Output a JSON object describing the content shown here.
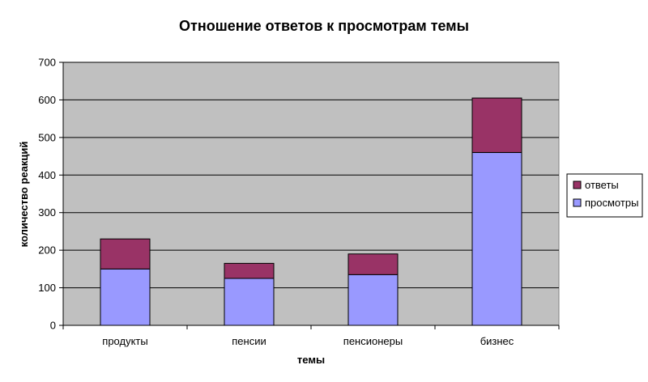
{
  "colors": {
    "plot_bg": "#c0c0c0",
    "otvety": "#993366",
    "prosmotry": "#9999ff",
    "gridline": "#000000",
    "legend_border": "#000000"
  },
  "chart_data": {
    "type": "bar",
    "stacked": true,
    "title": "Отношение ответов к просмотрам темы",
    "xlabel": "темы",
    "ylabel": "количество реакций",
    "categories": [
      "продукты",
      "пенсии",
      "пенсионеры",
      "бизнес"
    ],
    "series": [
      {
        "name": "просмотры",
        "values": [
          150,
          125,
          135,
          460
        ]
      },
      {
        "name": "ответы",
        "values": [
          80,
          40,
          55,
          145
        ]
      }
    ],
    "ylim": [
      0,
      700
    ],
    "yticks": [
      0,
      100,
      200,
      300,
      400,
      500,
      600,
      700
    ],
    "grid": true,
    "legend_position": "right",
    "legend_order": [
      "ответы",
      "просмотры"
    ]
  }
}
